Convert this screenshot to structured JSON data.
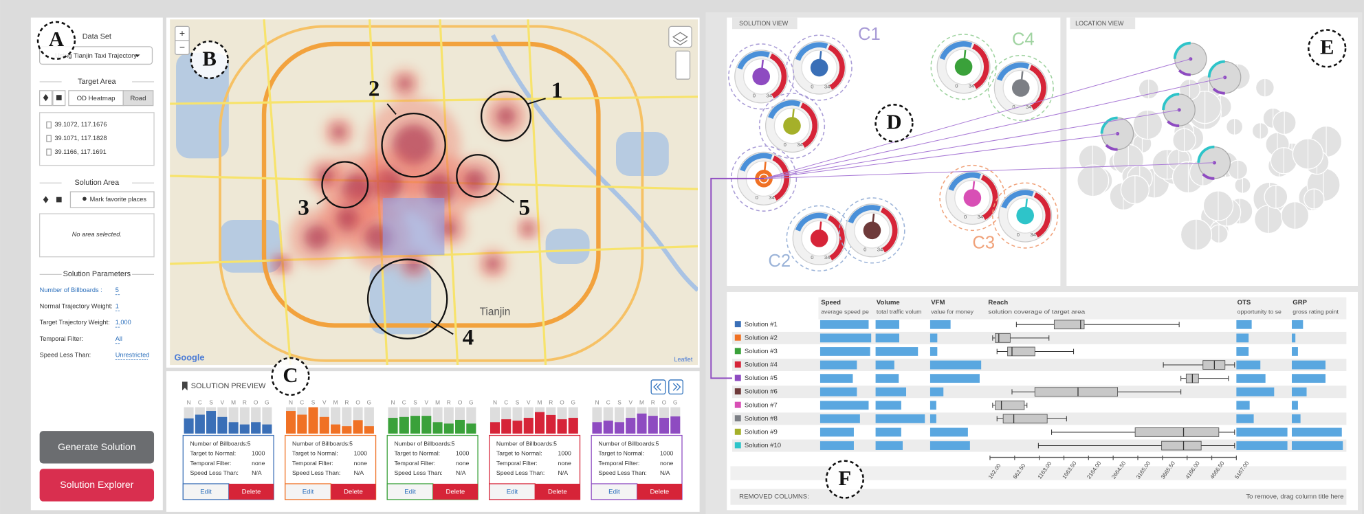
{
  "annotations": {
    "letters": [
      "A",
      "B",
      "C",
      "D",
      "E",
      "F"
    ],
    "map_numbers": [
      "1",
      "2",
      "3",
      "4",
      "5"
    ]
  },
  "control_panel": {
    "data_set_title": "Data Set",
    "data_set": "Using Tianjin Taxi Trajectory",
    "target_area_title": "Target Area",
    "target_buttons": [
      "OD Heatmap",
      "Road"
    ],
    "coordinates": [
      "39.1072, 117.1676",
      "39.1071, 117.1828",
      "39.1166, 117.1691"
    ],
    "solution_area_title": "Solution Area",
    "mark_button": "Mark favorite places",
    "no_area": "No area selected.",
    "parameters_title": "Solution Parameters",
    "parameters": [
      {
        "label": "Number of Billboards :",
        "value": "5"
      },
      {
        "label": "Normal Trajectory Weight:",
        "value": "1"
      },
      {
        "label": "Target Trajectory Weight:",
        "value": "1,000"
      },
      {
        "label": "Temporal Filter:",
        "value": "All"
      },
      {
        "label": "Speed Less Than:",
        "value": "Unrestricted"
      }
    ],
    "generate_button": "Generate Solution",
    "explorer_button": "Solution Explorer"
  },
  "map": {
    "city_label": "Tianjin",
    "attribution_left": "Google",
    "attribution_right": "Leaflet",
    "zoom_in": "+",
    "zoom_out": "−"
  },
  "solution_preview": {
    "title": "SOLUTION PREVIEW",
    "metric_letters": [
      "N",
      "C",
      "S",
      "V",
      "M",
      "R",
      "O",
      "G"
    ],
    "field_labels": [
      "Number of Billboards:",
      "Target to Normal:",
      "Temporal Filter:",
      "Speed Less Than:"
    ],
    "edit": "Edit",
    "delete": "Delete",
    "cards": [
      {
        "color": "#3a6fb7",
        "bars": [
          53,
          66,
          79,
          58,
          40,
          32,
          40,
          32
        ],
        "values": [
          5,
          1000,
          "none",
          "N/A"
        ]
      },
      {
        "color": "#f07124",
        "bars": [
          79,
          66,
          92,
          58,
          32,
          26,
          47,
          26
        ],
        "values": [
          5,
          1000,
          "none",
          "N/A"
        ]
      },
      {
        "color": "#3aa13a",
        "bars": [
          55,
          58,
          62,
          62,
          40,
          35,
          48,
          35
        ],
        "values": [
          5,
          1000,
          "none",
          "N/A"
        ]
      },
      {
        "color": "#d62438",
        "bars": [
          40,
          50,
          45,
          55,
          75,
          65,
          50,
          55
        ],
        "values": [
          5,
          1000,
          "none",
          "N/A"
        ]
      },
      {
        "color": "#8e4bc1",
        "bars": [
          40,
          45,
          40,
          55,
          70,
          62,
          55,
          60
        ],
        "values": [
          5,
          1000,
          "none",
          "N/A"
        ]
      }
    ]
  },
  "solution_view": {
    "title": "SOLUTION VIEW",
    "clusters": [
      {
        "label": "C1",
        "color": "#a89bd6"
      },
      {
        "label": "C2",
        "color": "#9bb3d8"
      },
      {
        "label": "C3",
        "color": "#f0a27a"
      },
      {
        "label": "C4",
        "color": "#9fd3a0"
      }
    ],
    "gauge_labels": [
      "0",
      "34"
    ]
  },
  "location_view": {
    "title": "LOCATION VIEW"
  },
  "table": {
    "columns": [
      {
        "name": "Speed",
        "description": "average speed pe"
      },
      {
        "name": "Volume",
        "description": "total traffic volum"
      },
      {
        "name": "VFM",
        "description": "value for money"
      },
      {
        "name": "Reach",
        "description": "solution coverage of target area"
      },
      {
        "name": "OTS",
        "description": "opportunity to se"
      },
      {
        "name": "GRP",
        "description": "gross rating point"
      }
    ],
    "rows": [
      {
        "name": "Solution #1",
        "color": "#3a6fb7",
        "speed": 95,
        "volume": 48,
        "vfm": 40,
        "ots": 30,
        "grp": 22,
        "reach": [
          698,
          1467,
          2003,
          2075,
          4005
        ]
      },
      {
        "name": "Solution #2",
        "color": "#f07124",
        "speed": 100,
        "volume": 48,
        "vfm": 14,
        "ots": 24,
        "grp": 7,
        "reach": [
          216,
          269,
          341,
          573,
          1360
        ]
      },
      {
        "name": "Solution #3",
        "color": "#3aa13a",
        "speed": 98,
        "volume": 86,
        "vfm": 14,
        "ots": 24,
        "grp": 12,
        "reach": [
          305,
          520,
          609,
          1074,
          1860
        ]
      },
      {
        "name": "Solution #4",
        "color": "#d62438",
        "speed": 72,
        "volume": 38,
        "vfm": 100,
        "ots": 47,
        "grp": 66,
        "reach": [
          3683,
          4488,
          4720,
          4935,
          5131
        ]
      },
      {
        "name": "Solution #5",
        "color": "#8e4bc1",
        "speed": 64,
        "volume": 47,
        "vfm": 97,
        "ots": 57,
        "grp": 66,
        "reach": [
          4040,
          4148,
          4273,
          4398,
          5006
        ]
      },
      {
        "name": "Solution #6",
        "color": "#6e3a3a",
        "speed": 72,
        "volume": 62,
        "vfm": 26,
        "ots": 74,
        "grp": 29,
        "reach": [
          609,
          1074,
          1950,
          2754,
          4040
        ]
      },
      {
        "name": "Solution #7",
        "color": "#d84fb5",
        "speed": 95,
        "volume": 52,
        "vfm": 12,
        "ots": 26,
        "grp": 12,
        "reach": [
          216,
          269,
          394,
          859,
          913
        ]
      },
      {
        "name": "Solution #8",
        "color": "#7c7f85",
        "speed": 78,
        "volume": 100,
        "vfm": 12,
        "ots": 34,
        "grp": 17,
        "reach": [
          305,
          430,
          645,
          1324,
          1717
        ]
      },
      {
        "name": "Solution #9",
        "color": "#a5b02a",
        "speed": 66,
        "volume": 52,
        "vfm": 74,
        "ots": 100,
        "grp": 98,
        "reach": [
          1413,
          3111,
          4094,
          4810,
          5131
        ]
      },
      {
        "name": "Solution #10",
        "color": "#2ec4c9",
        "speed": 66,
        "volume": 55,
        "vfm": 78,
        "ots": 100,
        "grp": 100,
        "reach": [
          1145,
          3648,
          4094,
          4452,
          5131
        ]
      }
    ],
    "reach_lim": [
      162,
      5167
    ],
    "reach_ticks": [
      {
        "value": 162,
        "label": "162.00"
      },
      {
        "value": 662.5,
        "label": "662.50"
      },
      {
        "value": 1163,
        "label": "1163.00"
      },
      {
        "value": 1663.5,
        "label": "1663.50"
      },
      {
        "value": 2164,
        "label": "2164.00"
      },
      {
        "value": 2664.5,
        "label": "2664.50"
      },
      {
        "value": 3165,
        "label": "3165.00"
      },
      {
        "value": 3665.5,
        "label": "3665.50"
      },
      {
        "value": 4166,
        "label": "4166.00"
      },
      {
        "value": 4666.5,
        "label": "4666.50"
      },
      {
        "value": 5167,
        "label": "5167.00"
      }
    ],
    "removed_label": "REMOVED COLUMNS:",
    "remove_hint": "To remove, drag column title here"
  }
}
